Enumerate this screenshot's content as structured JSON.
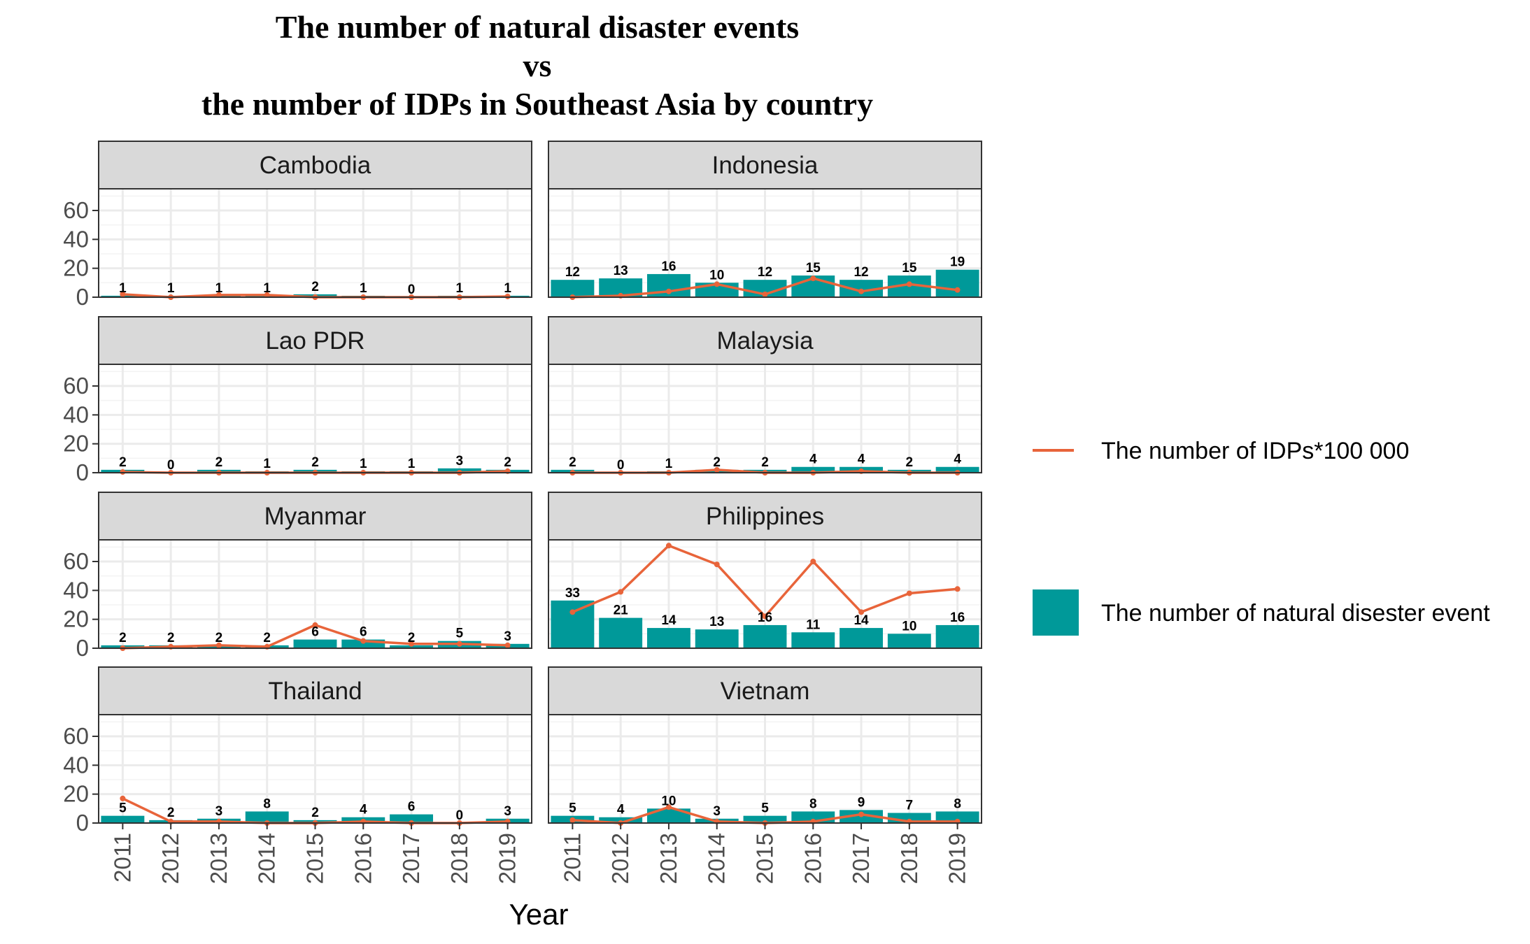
{
  "chart_data": {
    "type": "bar",
    "title": [
      "The number of natural disaster events",
      "vs",
      "the number of IDPs in Southeast Asia by country"
    ],
    "xlabel": "Year",
    "ylabel": "",
    "ylim": [
      0,
      75
    ],
    "y_ticks": [
      0,
      20,
      40,
      60
    ],
    "years": [
      "2011",
      "2012",
      "2013",
      "2014",
      "2015",
      "2016",
      "2017",
      "2018",
      "2019"
    ],
    "grid": true,
    "legend_position": "right",
    "legend": [
      {
        "kind": "line",
        "label": "The number of IDPs*100 000"
      },
      {
        "kind": "bar",
        "label": "The number of natural disester event"
      }
    ],
    "colors": {
      "bar": "#009999",
      "line": "#E8643A",
      "strip": "#D9D9D9"
    },
    "facets": [
      {
        "country": "Cambodia",
        "bars": [
          1,
          1,
          1,
          1,
          2,
          1,
          0,
          1,
          1
        ],
        "line": [
          2,
          0,
          1.5,
          1.5,
          0,
          0,
          0,
          0,
          0.5
        ]
      },
      {
        "country": "Indonesia",
        "bars": [
          12,
          13,
          16,
          10,
          12,
          15,
          12,
          15,
          19
        ],
        "line": [
          0,
          1,
          4,
          9,
          2,
          13,
          4,
          9,
          5
        ]
      },
      {
        "country": "Lao PDR",
        "bars": [
          2,
          0,
          2,
          1,
          2,
          1,
          1,
          3,
          2
        ],
        "line": [
          0.5,
          0,
          0,
          0,
          0,
          0,
          0,
          0,
          1
        ]
      },
      {
        "country": "Malaysia",
        "bars": [
          2,
          0,
          1,
          2,
          2,
          4,
          4,
          2,
          4
        ],
        "line": [
          0,
          0,
          0,
          2,
          0,
          0,
          1,
          0,
          0
        ]
      },
      {
        "country": "Myanmar",
        "bars": [
          2,
          2,
          2,
          2,
          6,
          6,
          2,
          5,
          3
        ],
        "line": [
          0,
          1,
          2,
          1,
          16,
          5,
          3,
          3,
          2
        ]
      },
      {
        "country": "Philippines",
        "bars": [
          33,
          21,
          14,
          13,
          16,
          11,
          14,
          10,
          16
        ],
        "line": [
          25,
          39,
          71,
          58,
          22,
          60,
          25,
          38,
          41
        ]
      },
      {
        "country": "Thailand",
        "bars": [
          5,
          2,
          3,
          8,
          2,
          4,
          6,
          0,
          3
        ],
        "line": [
          17,
          1,
          1,
          0,
          0,
          1,
          0,
          0,
          1
        ]
      },
      {
        "country": "Vietnam",
        "bars": [
          5,
          4,
          10,
          3,
          5,
          8,
          9,
          7,
          8
        ],
        "line": [
          2,
          0,
          11,
          1,
          0,
          1,
          6,
          1,
          1
        ]
      }
    ]
  }
}
